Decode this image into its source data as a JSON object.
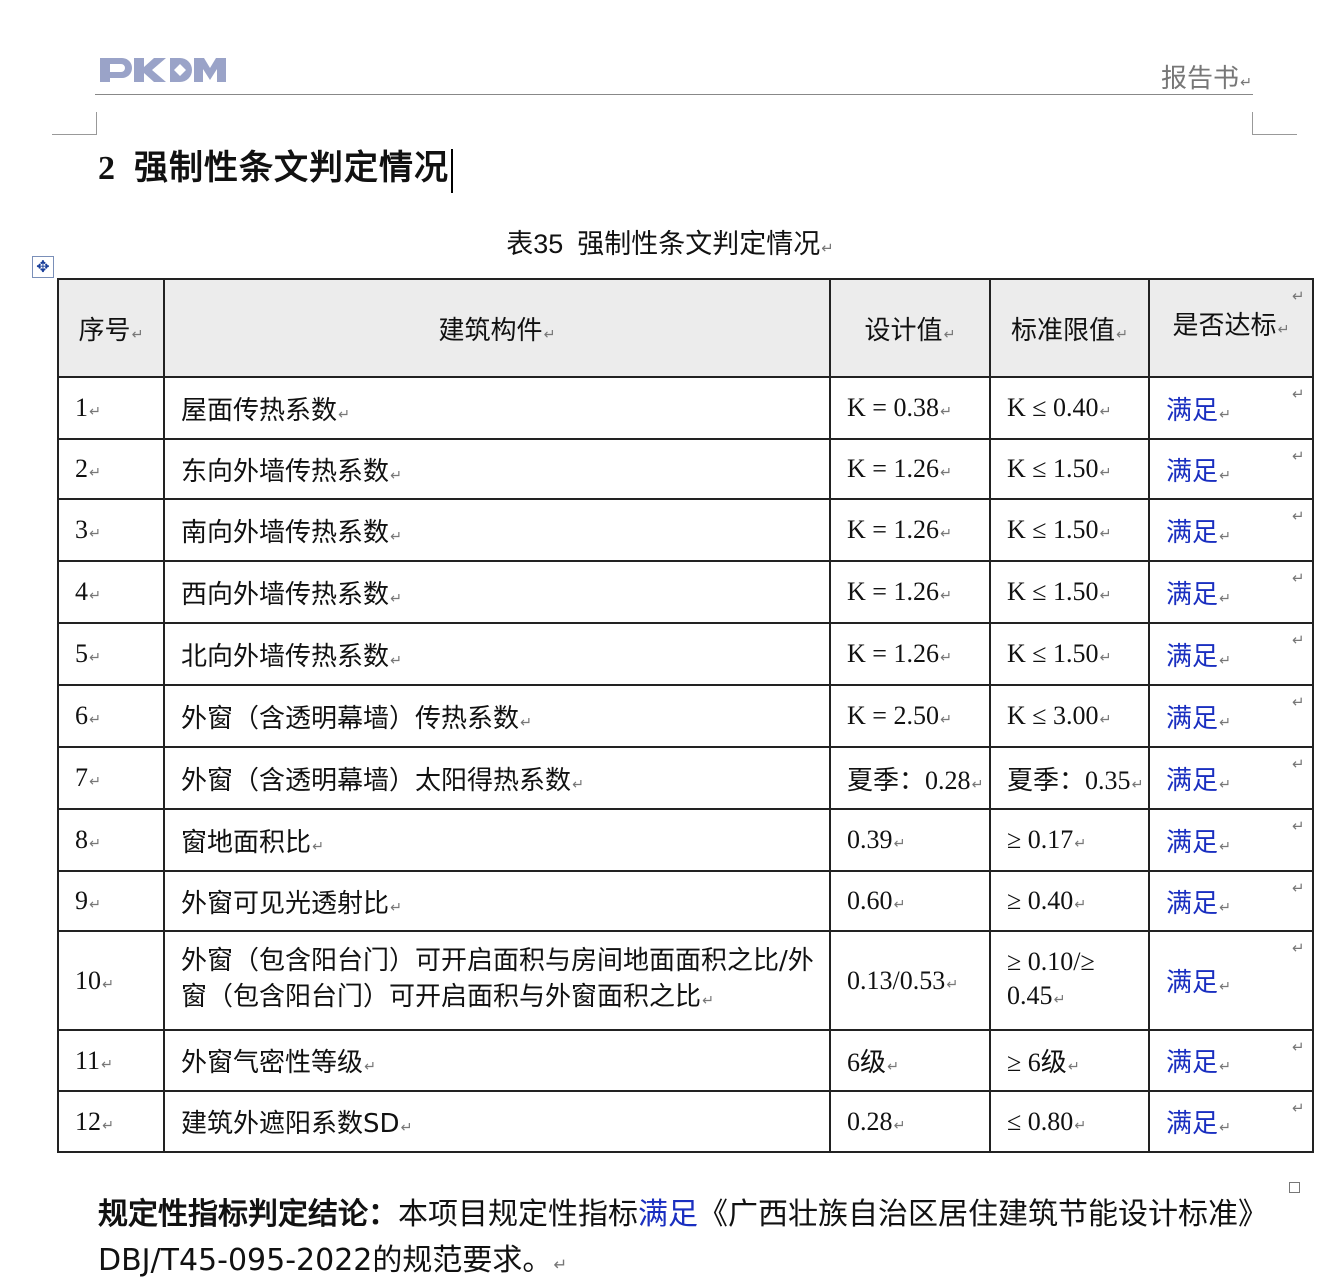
{
  "header": {
    "logo_text": "PKPM",
    "right_text": "报告书"
  },
  "section": {
    "number": "2",
    "title": "强制性条文判定情况"
  },
  "table_caption": {
    "number": "表35",
    "title": "强制性条文判定情况"
  },
  "table": {
    "columns": [
      "序号",
      "建筑构件",
      "设计值",
      "标准限值",
      "是否达标"
    ],
    "rows": [
      [
        "1",
        "屋面传热系数",
        "K = 0.38",
        "K ≤ 0.40",
        "满足"
      ],
      [
        "2",
        "东向外墙传热系数",
        "K = 1.26",
        "K ≤ 1.50",
        "满足"
      ],
      [
        "3",
        "南向外墙传热系数",
        "K = 1.26",
        "K ≤ 1.50",
        "满足"
      ],
      [
        "4",
        "西向外墙传热系数",
        "K = 1.26",
        "K ≤ 1.50",
        "满足"
      ],
      [
        "5",
        "北向外墙传热系数",
        "K = 1.26",
        "K ≤ 1.50",
        "满足"
      ],
      [
        "6",
        "外窗（含透明幕墙）传热系数",
        "K = 2.50",
        "K ≤ 3.00",
        "满足"
      ],
      [
        "7",
        "外窗（含透明幕墙）太阳得热系数",
        "夏季：0.28",
        "夏季：0.35",
        "满足"
      ],
      [
        "8",
        "窗地面积比",
        "0.39",
        "≥ 0.17",
        "满足"
      ],
      [
        "9",
        "外窗可见光透射比",
        "0.60",
        "≥ 0.40",
        "满足"
      ],
      [
        "10",
        "外窗（包含阳台门）可开启面积与房间地面面积之比/外窗（包含阳台门）可开启面积与外窗面积之比",
        "0.13/0.53",
        "≥ 0.10/≥ 0.45",
        "满足"
      ],
      [
        "11",
        "外窗气密性等级",
        "6级",
        "≥ 6级",
        "满足"
      ],
      [
        "12",
        "建筑外遮阳系数SD",
        "0.28",
        "≤ 0.80",
        "满足"
      ]
    ]
  },
  "conclusion": {
    "label": "规定性指标判定结论：",
    "text1": "本项目规定性指标",
    "highlight": "满足",
    "text2": "《广西壮族自治区居住建筑节能设计标准》DBJ/T45-095-2022的规范要求。"
  },
  "colors": {
    "pass_text": "#1a2fc0",
    "logo": "#9aa3c8",
    "header_fill": "#ececec"
  }
}
